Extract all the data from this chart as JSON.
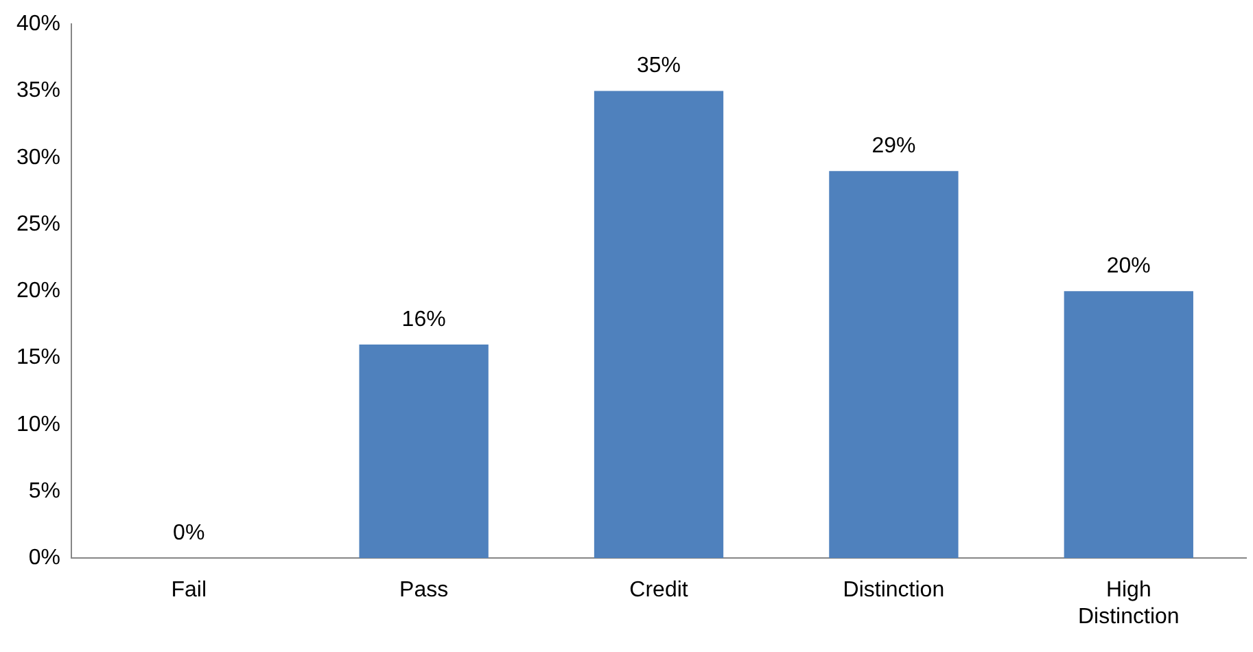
{
  "chart_data": {
    "type": "bar",
    "categories": [
      "Fail",
      "Pass",
      "Credit",
      "Distinction",
      "High Distinction"
    ],
    "values": [
      0,
      16,
      35,
      29,
      20
    ],
    "value_labels": [
      "0%",
      "16%",
      "35%",
      "29%",
      "20%"
    ],
    "color": "#4f81bd",
    "ylim": [
      0,
      40
    ],
    "yticks": [
      {
        "value": 0,
        "label": "0%"
      },
      {
        "value": 5,
        "label": "5%"
      },
      {
        "value": 10,
        "label": "10%"
      },
      {
        "value": 15,
        "label": "15%"
      },
      {
        "value": 20,
        "label": "20%"
      },
      {
        "value": 25,
        "label": "25%"
      },
      {
        "value": 30,
        "label": "30%"
      },
      {
        "value": 35,
        "label": "35%"
      },
      {
        "value": 40,
        "label": "40%"
      }
    ],
    "grid": false,
    "legend": false
  }
}
